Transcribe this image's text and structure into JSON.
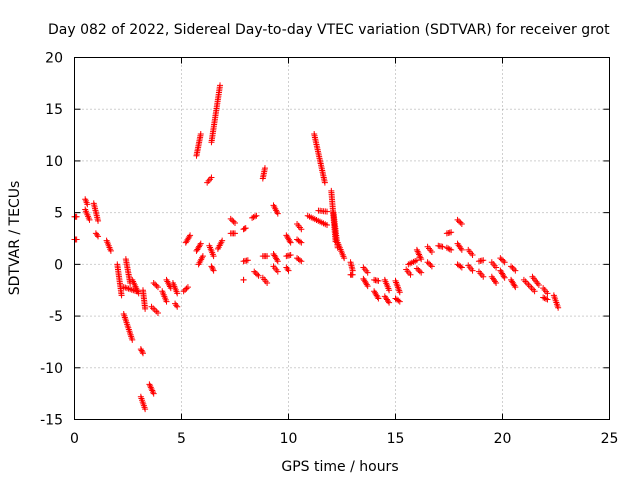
{
  "chart_data": {
    "type": "scatter",
    "title": "Day 082 of 2022, Sidereal Day-to-day VTEC variation (SDTVAR) for receiver grot",
    "xlabel": "GPS time / hours",
    "ylabel": "SDTVAR / TECUs",
    "xlim": [
      0,
      25
    ],
    "ylim": [
      -15,
      20
    ],
    "xticks": [
      0,
      5,
      10,
      15,
      20,
      25
    ],
    "yticks": [
      -15,
      -10,
      -5,
      0,
      5,
      10,
      15,
      20
    ],
    "grid": true,
    "marker": "+",
    "color": "#ff0000",
    "segments": [
      {
        "x0": 0.0,
        "x1": 0.1,
        "y0": 2.4,
        "y1": 2.4
      },
      {
        "x0": 0.0,
        "x1": 0.1,
        "y0": 4.6,
        "y1": 4.6
      },
      {
        "x0": 0.5,
        "x1": 0.6,
        "y0": 6.3,
        "y1": 5.8
      },
      {
        "x0": 0.5,
        "x1": 0.7,
        "y0": 5.3,
        "y1": 4.3
      },
      {
        "x0": 0.9,
        "x1": 1.1,
        "y0": 5.9,
        "y1": 4.2
      },
      {
        "x0": 1.0,
        "x1": 1.1,
        "y0": 3.0,
        "y1": 2.7
      },
      {
        "x0": 1.5,
        "x1": 1.7,
        "y0": 2.3,
        "y1": 1.3
      },
      {
        "x0": 2.0,
        "x1": 2.2,
        "y0": 0.0,
        "y1": -3.0
      },
      {
        "x0": 2.3,
        "x1": 2.7,
        "y0": -4.8,
        "y1": -7.3
      },
      {
        "x0": 2.3,
        "x1": 2.9,
        "y0": -2.2,
        "y1": -2.6
      },
      {
        "x0": 2.4,
        "x1": 2.6,
        "y0": 0.5,
        "y1": -1.8
      },
      {
        "x0": 2.7,
        "x1": 3.0,
        "y0": -1.5,
        "y1": -2.8
      },
      {
        "x0": 3.1,
        "x1": 3.2,
        "y0": -8.2,
        "y1": -8.6
      },
      {
        "x0": 3.1,
        "x1": 3.3,
        "y0": -12.8,
        "y1": -14.0
      },
      {
        "x0": 3.2,
        "x1": 3.3,
        "y0": -2.5,
        "y1": -4.3
      },
      {
        "x0": 3.5,
        "x1": 3.7,
        "y0": -11.6,
        "y1": -12.5
      },
      {
        "x0": 3.6,
        "x1": 3.9,
        "y0": -4.1,
        "y1": -4.7
      },
      {
        "x0": 3.7,
        "x1": 3.9,
        "y0": -1.8,
        "y1": -2.2
      },
      {
        "x0": 4.1,
        "x1": 4.3,
        "y0": -2.6,
        "y1": -3.6
      },
      {
        "x0": 4.3,
        "x1": 4.5,
        "y0": -1.5,
        "y1": -2.3
      },
      {
        "x0": 4.6,
        "x1": 4.8,
        "y0": -1.8,
        "y1": -2.8
      },
      {
        "x0": 4.7,
        "x1": 4.8,
        "y0": -3.8,
        "y1": -4.1
      },
      {
        "x0": 5.1,
        "x1": 5.3,
        "y0": -2.6,
        "y1": -2.2
      },
      {
        "x0": 5.2,
        "x1": 5.4,
        "y0": 2.1,
        "y1": 2.8
      },
      {
        "x0": 5.7,
        "x1": 5.9,
        "y0": 10.5,
        "y1": 12.6
      },
      {
        "x0": 5.7,
        "x1": 5.9,
        "y0": 1.3,
        "y1": 2.0
      },
      {
        "x0": 5.8,
        "x1": 6.0,
        "y0": 0.0,
        "y1": 0.8
      },
      {
        "x0": 6.2,
        "x1": 6.4,
        "y0": 7.9,
        "y1": 8.4
      },
      {
        "x0": 6.3,
        "x1": 6.5,
        "y0": 1.8,
        "y1": 0.8
      },
      {
        "x0": 6.4,
        "x1": 6.5,
        "y0": -0.2,
        "y1": -0.6
      },
      {
        "x0": 6.4,
        "x1": 6.8,
        "y0": 11.8,
        "y1": 17.3
      },
      {
        "x0": 6.7,
        "x1": 6.9,
        "y0": 1.5,
        "y1": 2.3
      },
      {
        "x0": 7.3,
        "x1": 7.5,
        "y0": 4.4,
        "y1": 4.0
      },
      {
        "x0": 7.3,
        "x1": 7.5,
        "y0": 3.0,
        "y1": 3.0
      },
      {
        "x0": 7.9,
        "x1": 8.0,
        "y0": 3.4,
        "y1": 3.5
      },
      {
        "x0": 7.9,
        "x1": 8.1,
        "y0": 0.3,
        "y1": 0.4
      },
      {
        "x0": 7.9,
        "x1": 7.9,
        "y0": -1.5,
        "y1": -1.5
      },
      {
        "x0": 8.3,
        "x1": 8.5,
        "y0": 4.5,
        "y1": 4.7
      },
      {
        "x0": 8.4,
        "x1": 8.6,
        "y0": -0.7,
        "y1": -1.1
      },
      {
        "x0": 8.8,
        "x1": 8.9,
        "y0": 8.3,
        "y1": 9.3
      },
      {
        "x0": 8.8,
        "x1": 9.0,
        "y0": 0.8,
        "y1": 0.8
      },
      {
        "x0": 8.8,
        "x1": 9.0,
        "y0": -1.3,
        "y1": -1.8
      },
      {
        "x0": 9.3,
        "x1": 9.5,
        "y0": 5.7,
        "y1": 4.9
      },
      {
        "x0": 9.3,
        "x1": 9.5,
        "y0": 1.0,
        "y1": 0.3
      },
      {
        "x0": 9.3,
        "x1": 9.5,
        "y0": -0.2,
        "y1": -0.7
      },
      {
        "x0": 9.9,
        "x1": 10.1,
        "y0": 2.8,
        "y1": 2.1
      },
      {
        "x0": 9.9,
        "x1": 10.1,
        "y0": 0.8,
        "y1": 0.9
      },
      {
        "x0": 9.9,
        "x1": 10.0,
        "y0": -0.3,
        "y1": -0.6
      },
      {
        "x0": 10.4,
        "x1": 10.6,
        "y0": 3.9,
        "y1": 3.4
      },
      {
        "x0": 10.4,
        "x1": 10.6,
        "y0": 2.4,
        "y1": 2.1
      },
      {
        "x0": 10.4,
        "x1": 10.6,
        "y0": 0.6,
        "y1": 0.3
      },
      {
        "x0": 10.9,
        "x1": 11.8,
        "y0": 4.7,
        "y1": 3.8
      },
      {
        "x0": 11.2,
        "x1": 11.7,
        "y0": 12.6,
        "y1": 7.9
      },
      {
        "x0": 11.4,
        "x1": 11.8,
        "y0": 5.2,
        "y1": 5.1
      },
      {
        "x0": 12.0,
        "x1": 12.2,
        "y0": 7.1,
        "y1": 2.2
      },
      {
        "x0": 12.1,
        "x1": 12.3,
        "y0": 5.0,
        "y1": 1.6
      },
      {
        "x0": 12.3,
        "x1": 12.6,
        "y0": 2.1,
        "y1": 0.6
      },
      {
        "x0": 12.9,
        "x1": 13.0,
        "y0": 0.2,
        "y1": -0.6
      },
      {
        "x0": 12.9,
        "x1": 13.0,
        "y0": -1.0,
        "y1": -1.0
      },
      {
        "x0": 13.5,
        "x1": 13.7,
        "y0": -0.3,
        "y1": -0.8
      },
      {
        "x0": 13.5,
        "x1": 13.7,
        "y0": -1.4,
        "y1": -2.1
      },
      {
        "x0": 14.0,
        "x1": 14.2,
        "y0": -2.6,
        "y1": -3.3
      },
      {
        "x0": 14.0,
        "x1": 14.2,
        "y0": -1.5,
        "y1": -1.6
      },
      {
        "x0": 14.5,
        "x1": 14.7,
        "y0": -1.5,
        "y1": -2.5
      },
      {
        "x0": 14.5,
        "x1": 14.7,
        "y0": -3.1,
        "y1": -3.7
      },
      {
        "x0": 15.0,
        "x1": 15.2,
        "y0": -1.6,
        "y1": -2.7
      },
      {
        "x0": 15.0,
        "x1": 15.2,
        "y0": -3.3,
        "y1": -3.6
      },
      {
        "x0": 15.5,
        "x1": 15.7,
        "y0": -0.5,
        "y1": -1.0
      },
      {
        "x0": 15.6,
        "x1": 16.0,
        "y0": 0.0,
        "y1": 0.4
      },
      {
        "x0": 16.0,
        "x1": 16.2,
        "y0": 1.4,
        "y1": 0.5
      },
      {
        "x0": 16.0,
        "x1": 16.2,
        "y0": -0.4,
        "y1": -0.8
      },
      {
        "x0": 16.5,
        "x1": 16.7,
        "y0": 1.7,
        "y1": 1.2
      },
      {
        "x0": 16.5,
        "x1": 16.7,
        "y0": 0.2,
        "y1": -0.2
      },
      {
        "x0": 17.0,
        "x1": 17.2,
        "y0": 1.8,
        "y1": 1.7
      },
      {
        "x0": 17.4,
        "x1": 17.6,
        "y0": 1.6,
        "y1": 1.4
      },
      {
        "x0": 17.4,
        "x1": 17.6,
        "y0": 3.0,
        "y1": 3.1
      },
      {
        "x0": 17.9,
        "x1": 18.1,
        "y0": 4.3,
        "y1": 3.9
      },
      {
        "x0": 17.9,
        "x1": 18.1,
        "y0": 2.0,
        "y1": 1.4
      },
      {
        "x0": 17.9,
        "x1": 18.1,
        "y0": 0.0,
        "y1": -0.3
      },
      {
        "x0": 18.4,
        "x1": 18.6,
        "y0": 1.4,
        "y1": 0.9
      },
      {
        "x0": 18.4,
        "x1": 18.6,
        "y0": -0.1,
        "y1": -0.6
      },
      {
        "x0": 18.9,
        "x1": 19.1,
        "y0": 0.3,
        "y1": 0.4
      },
      {
        "x0": 18.9,
        "x1": 19.1,
        "y0": -0.7,
        "y1": -1.2
      },
      {
        "x0": 19.5,
        "x1": 19.7,
        "y0": 0.2,
        "y1": -0.3
      },
      {
        "x0": 19.5,
        "x1": 19.7,
        "y0": -1.2,
        "y1": -1.8
      },
      {
        "x0": 19.9,
        "x1": 20.1,
        "y0": 0.6,
        "y1": 0.2
      },
      {
        "x0": 19.9,
        "x1": 20.1,
        "y0": -0.6,
        "y1": -1.3
      },
      {
        "x0": 20.4,
        "x1": 20.6,
        "y0": -0.2,
        "y1": -0.6
      },
      {
        "x0": 20.4,
        "x1": 20.6,
        "y0": -1.5,
        "y1": -2.2
      },
      {
        "x0": 21.0,
        "x1": 21.5,
        "y0": -1.5,
        "y1": -2.6
      },
      {
        "x0": 21.4,
        "x1": 21.7,
        "y0": -1.2,
        "y1": -2.0
      },
      {
        "x0": 21.9,
        "x1": 22.1,
        "y0": -2.3,
        "y1": -2.8
      },
      {
        "x0": 21.9,
        "x1": 22.1,
        "y0": -3.2,
        "y1": -3.4
      },
      {
        "x0": 22.4,
        "x1": 22.6,
        "y0": -3.0,
        "y1": -4.2
      }
    ]
  }
}
